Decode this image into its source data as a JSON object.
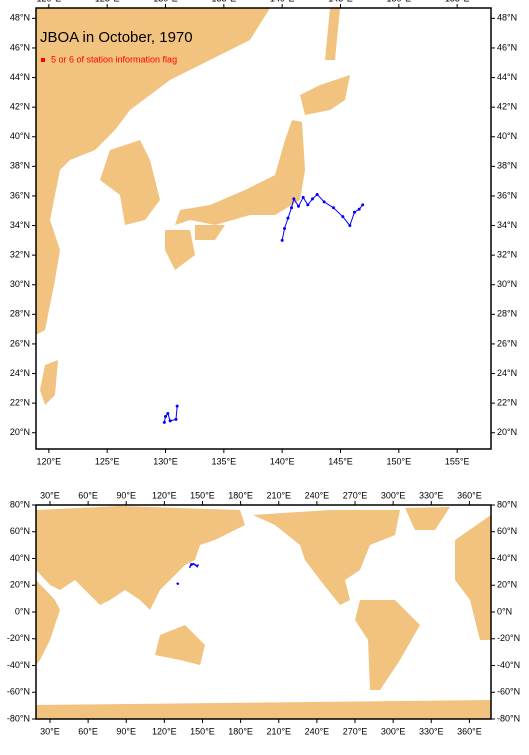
{
  "regional_map": {
    "title": "JBOA in October, 1970",
    "legend": {
      "label": "5 or 6 of station information flag",
      "color": "#ff0000"
    },
    "xlim": [
      118.9,
      157.9
    ],
    "ylim": [
      18.9,
      48.7
    ],
    "xticks": [
      {
        "value": 120,
        "label": "120°E"
      },
      {
        "value": 125,
        "label": "125°E"
      },
      {
        "value": 130,
        "label": "130°E"
      },
      {
        "value": 135,
        "label": "135°E"
      },
      {
        "value": 140,
        "label": "140°E"
      },
      {
        "value": 145,
        "label": "145°E"
      },
      {
        "value": 150,
        "label": "150°E"
      },
      {
        "value": 155,
        "label": "155°E"
      }
    ],
    "yticks": [
      {
        "value": 20,
        "label": "20°N"
      },
      {
        "value": 22,
        "label": "22°N"
      },
      {
        "value": 24,
        "label": "24°N"
      },
      {
        "value": 26,
        "label": "26°N"
      },
      {
        "value": 28,
        "label": "28°N"
      },
      {
        "value": 30,
        "label": "30°N"
      },
      {
        "value": 32,
        "label": "32°N"
      },
      {
        "value": 34,
        "label": "34°N"
      },
      {
        "value": 36,
        "label": "36°N"
      },
      {
        "value": 38,
        "label": "38°N"
      },
      {
        "value": 40,
        "label": "40°N"
      },
      {
        "value": 42,
        "label": "42°N"
      },
      {
        "value": 44,
        "label": "44°N"
      },
      {
        "value": 46,
        "label": "46°N"
      },
      {
        "value": 48,
        "label": "48°N"
      }
    ],
    "track_color": "#0000ff",
    "tracks": [
      [
        [
          140,
          33
        ],
        [
          140.2,
          33.8
        ],
        [
          140.5,
          34.5
        ],
        [
          140.8,
          35.2
        ],
        [
          141,
          35.8
        ],
        [
          141.4,
          35.3
        ],
        [
          141.8,
          35.9
        ],
        [
          142.2,
          35.4
        ],
        [
          142.6,
          35.8
        ],
        [
          143,
          36.1
        ],
        [
          143.6,
          35.6
        ],
        [
          144.4,
          35.2
        ],
        [
          145.2,
          34.6
        ],
        [
          145.8,
          34
        ],
        [
          146.2,
          34.9
        ],
        [
          146.6,
          35.1
        ],
        [
          146.9,
          35.4
        ]
      ],
      [
        [
          129.9,
          20.7
        ],
        [
          130,
          21.1
        ],
        [
          130.2,
          21.3
        ],
        [
          130.4,
          20.8
        ],
        [
          130.9,
          20.9
        ],
        [
          131,
          21.8
        ]
      ]
    ]
  },
  "world_map": {
    "xlim": [
      19,
      377
    ],
    "ylim": [
      -80,
      80
    ],
    "xticks": [
      {
        "value": 30,
        "label": "30°E"
      },
      {
        "value": 60,
        "label": "60°E"
      },
      {
        "value": 90,
        "label": "90°E"
      },
      {
        "value": 120,
        "label": "120°E"
      },
      {
        "value": 150,
        "label": "150°E"
      },
      {
        "value": 180,
        "label": "180°E"
      },
      {
        "value": 210,
        "label": "210°E"
      },
      {
        "value": 240,
        "label": "240°E"
      },
      {
        "value": 270,
        "label": "270°E"
      },
      {
        "value": 300,
        "label": "300°E"
      },
      {
        "value": 330,
        "label": "330°E"
      },
      {
        "value": 360,
        "label": "360°E"
      }
    ],
    "yticks": [
      {
        "value": 80,
        "label": "80°N"
      },
      {
        "value": 60,
        "label": "60°N"
      },
      {
        "value": 40,
        "label": "40°N"
      },
      {
        "value": 20,
        "label": "20°N"
      },
      {
        "value": 0,
        "label": "0°N"
      },
      {
        "value": -20,
        "label": "-20°N"
      },
      {
        "value": -40,
        "label": "-40°N"
      },
      {
        "value": -60,
        "label": "-60°N"
      },
      {
        "value": -80,
        "label": "-80°N"
      }
    ]
  }
}
